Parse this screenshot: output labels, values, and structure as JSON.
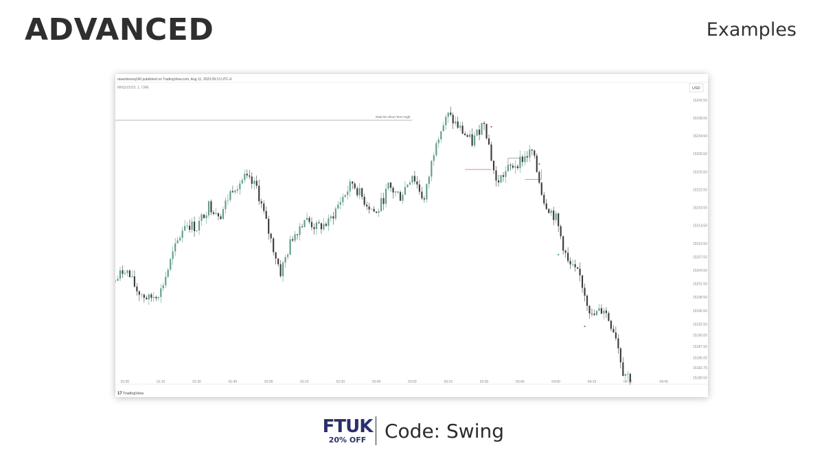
{
  "header": {
    "title": "ADVANCED",
    "section": "Examples"
  },
  "chart_panel": {
    "published_line": "rawarfarooq190 published on TradingView.com, Aug 11, 2023 09:13 UTC-4",
    "symbol_line": "MNQU2023, 1, CME",
    "currency": "USD",
    "level_label": "Raid On Short Term High",
    "brand": "TradingView"
  },
  "footer": {
    "logo_text": "FTUK",
    "discount": "20% OFF",
    "code_text": "Code: Swing"
  },
  "colors": {
    "up": "#5f9e8f",
    "down": "#3c3c3c",
    "level_line": "#b0b0b0",
    "marker_red": "#d64545",
    "marker_green": "#3a8f7a",
    "logo": "#2a2f6b"
  },
  "chart_data": {
    "type": "candlestick",
    "x_ticks": [
      "01:00",
      "01:15",
      "01:30",
      "01:45",
      "02:00",
      "02:15",
      "02:30",
      "02:45",
      "03:00",
      "03:15",
      "03:30",
      "03:45",
      "04:00",
      "04:15",
      "04:30",
      "04:45"
    ],
    "y_ticks": [
      "15242.50",
      "15238.50",
      "15234.50",
      "15230.50",
      "15226.50",
      "15222.50",
      "15218.50",
      "15214.50",
      "15210.50",
      "15207.50",
      "15204.50",
      "15201.50",
      "15198.50",
      "15195.50",
      "15192.50",
      "15190.00",
      "15187.50",
      "15185.00",
      "15182.75",
      "15180.50"
    ],
    "ylim": [
      15180.0,
      15244.0
    ],
    "horizontal_levels": [
      {
        "label": "Raid On Short Term High",
        "value": 15238.0,
        "from": "00:56",
        "to": "03:00"
      }
    ],
    "price_path": [
      {
        "time": "00:56",
        "price": 15202.0
      },
      {
        "time": "01:00",
        "price": 15205.0
      },
      {
        "time": "01:05",
        "price": 15200.0
      },
      {
        "time": "01:10",
        "price": 15198.0
      },
      {
        "time": "01:15",
        "price": 15200.0
      },
      {
        "time": "01:20",
        "price": 15208.0
      },
      {
        "time": "01:25",
        "price": 15215.0
      },
      {
        "time": "01:30",
        "price": 15214.0
      },
      {
        "time": "01:35",
        "price": 15219.0
      },
      {
        "time": "01:40",
        "price": 15217.0
      },
      {
        "time": "01:45",
        "price": 15223.0
      },
      {
        "time": "01:50",
        "price": 15225.0
      },
      {
        "time": "01:55",
        "price": 15223.0
      },
      {
        "time": "02:00",
        "price": 15213.0
      },
      {
        "time": "02:05",
        "price": 15204.0
      },
      {
        "time": "02:10",
        "price": 15212.0
      },
      {
        "time": "02:15",
        "price": 15216.0
      },
      {
        "time": "02:20",
        "price": 15214.0
      },
      {
        "time": "02:25",
        "price": 15215.0
      },
      {
        "time": "02:30",
        "price": 15220.0
      },
      {
        "time": "02:35",
        "price": 15224.0
      },
      {
        "time": "02:40",
        "price": 15220.0
      },
      {
        "time": "02:45",
        "price": 15217.0
      },
      {
        "time": "02:50",
        "price": 15223.0
      },
      {
        "time": "02:55",
        "price": 15221.0
      },
      {
        "time": "03:00",
        "price": 15226.0
      },
      {
        "time": "03:05",
        "price": 15220.0
      },
      {
        "time": "03:10",
        "price": 15234.0
      },
      {
        "time": "03:15",
        "price": 15239.0
      },
      {
        "time": "03:20",
        "price": 15236.0
      },
      {
        "time": "03:25",
        "price": 15233.0
      },
      {
        "time": "03:30",
        "price": 15238.0
      },
      {
        "time": "03:35",
        "price": 15224.0
      },
      {
        "time": "03:40",
        "price": 15227.0
      },
      {
        "time": "03:45",
        "price": 15229.0
      },
      {
        "time": "03:50",
        "price": 15231.0
      },
      {
        "time": "03:55",
        "price": 15220.0
      },
      {
        "time": "04:00",
        "price": 15216.0
      },
      {
        "time": "04:05",
        "price": 15206.0
      },
      {
        "time": "04:10",
        "price": 15203.0
      },
      {
        "time": "04:15",
        "price": 15194.0
      },
      {
        "time": "04:20",
        "price": 15196.0
      },
      {
        "time": "04:25",
        "price": 15190.0
      },
      {
        "time": "04:28",
        "price": 15182.0
      },
      {
        "time": "04:31",
        "price": 15180.5
      }
    ]
  }
}
